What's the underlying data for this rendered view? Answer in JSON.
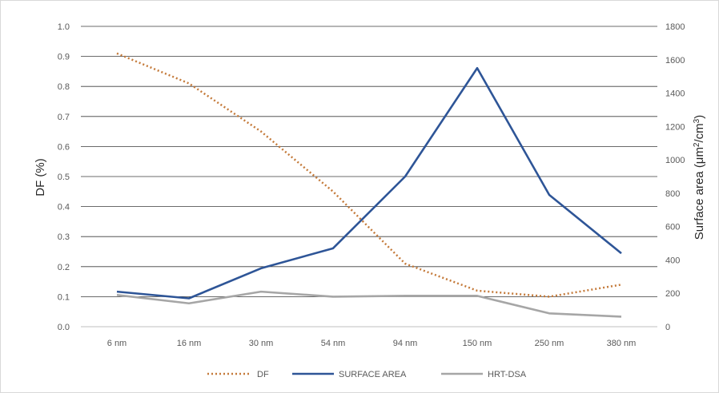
{
  "chart_data": {
    "type": "line",
    "categories": [
      "6 nm",
      "16 nm",
      "30 nm",
      "54 nm",
      "94 nm",
      "150 nm",
      "250 nm",
      "380 nm"
    ],
    "y_left": {
      "label": "DF (%)",
      "range": [
        0,
        1.0
      ],
      "ticks": [
        "0.0",
        "0.1",
        "0.2",
        "0.3",
        "0.4",
        "0.5",
        "0.6",
        "0.7",
        "0.8",
        "0.9",
        "1.0"
      ]
    },
    "y_right": {
      "label": "Surface area (μm²/cm³)",
      "label_main": "Surface area (μm",
      "label_sup1": "2",
      "label_mid": "/cm",
      "label_sup2": "3",
      "label_end": ")",
      "range": [
        0,
        1800
      ],
      "ticks": [
        "0",
        "200",
        "400",
        "600",
        "800",
        "1000",
        "1200",
        "1400",
        "1600",
        "1800"
      ]
    },
    "grid": true,
    "legend_position": "bottom",
    "series": [
      {
        "name": "DF",
        "axis": "left",
        "style": "dotted",
        "color": "#c47a3a",
        "values": [
          0.91,
          0.81,
          0.65,
          0.45,
          0.21,
          0.12,
          0.1,
          0.14
        ]
      },
      {
        "name": "SURFACE AREA",
        "axis": "right",
        "style": "solid",
        "color": "#2e5597",
        "values": [
          210,
          170,
          350,
          470,
          900,
          1550,
          790,
          440
        ]
      },
      {
        "name": "HRT-DSA",
        "axis": "right",
        "style": "solid",
        "color": "#a6a6a6",
        "values": [
          190,
          140,
          210,
          180,
          185,
          185,
          80,
          60
        ]
      }
    ]
  }
}
